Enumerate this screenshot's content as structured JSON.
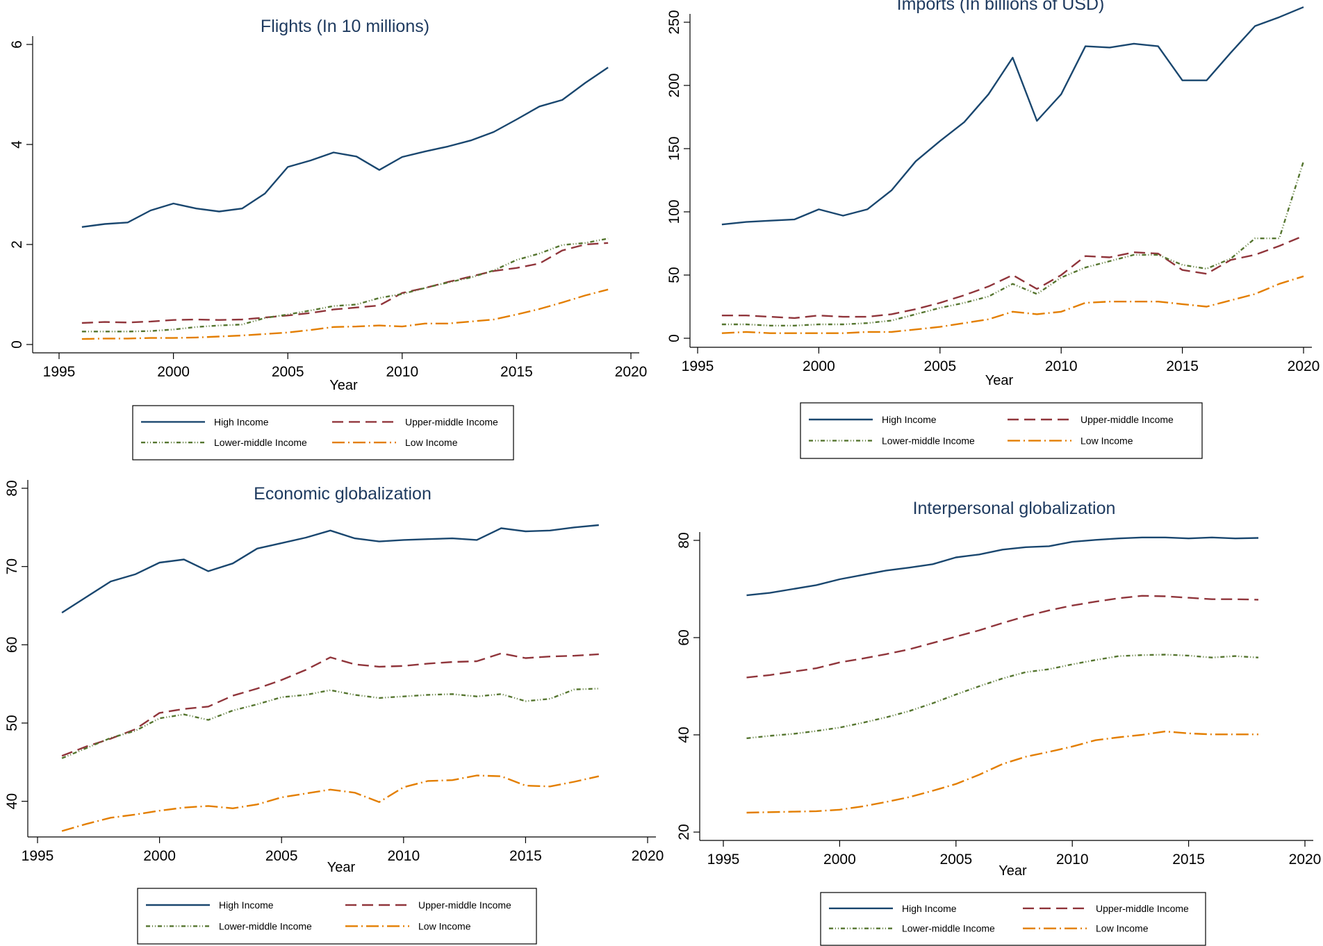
{
  "series_styles": [
    {
      "name": "High Income",
      "color": "#1a476f",
      "dash": "none"
    },
    {
      "name": "Upper-middle Income",
      "color": "#90353b",
      "dash": "16 8"
    },
    {
      "name": "Lower-middle Income",
      "color": "#55752f",
      "dash": "6 3 1 3 1 3"
    },
    {
      "name": "Low Income",
      "color": "#e37e00",
      "dash": "18 5 2 5"
    }
  ],
  "chart_data": [
    {
      "type": "line",
      "title": "Flights (In 10 millions)",
      "xlabel": "Year",
      "ylabel": "",
      "xlim": [
        1995,
        2020
      ],
      "ylim": [
        0,
        6
      ],
      "xticks": [
        1995,
        2000,
        2005,
        2010,
        2015,
        2020
      ],
      "yticks": [
        0,
        2,
        4,
        6
      ],
      "legend": "bottom",
      "x": [
        1996,
        1997,
        1998,
        1999,
        2000,
        2001,
        2002,
        2003,
        2004,
        2005,
        2006,
        2007,
        2008,
        2009,
        2010,
        2011,
        2012,
        2013,
        2014,
        2015,
        2016,
        2017,
        2018,
        2019
      ],
      "series": [
        {
          "name": "High Income",
          "values": [
            2.35,
            2.41,
            2.44,
            2.68,
            2.82,
            2.72,
            2.66,
            2.72,
            3.02,
            3.55,
            3.68,
            3.84,
            3.76,
            3.49,
            3.75,
            3.86,
            3.96,
            4.08,
            4.25,
            4.5,
            4.76,
            4.89,
            5.23,
            5.54
          ]
        },
        {
          "name": "Upper-middle Income",
          "values": [
            0.43,
            0.45,
            0.44,
            0.46,
            0.49,
            0.5,
            0.49,
            0.5,
            0.54,
            0.58,
            0.63,
            0.7,
            0.74,
            0.78,
            1.03,
            1.13,
            1.25,
            1.36,
            1.47,
            1.53,
            1.62,
            1.88,
            2.0,
            2.03
          ]
        },
        {
          "name": "Lower-middle Income",
          "values": [
            0.26,
            0.26,
            0.26,
            0.27,
            0.3,
            0.35,
            0.38,
            0.4,
            0.53,
            0.6,
            0.68,
            0.77,
            0.8,
            0.93,
            1.01,
            1.13,
            1.24,
            1.34,
            1.48,
            1.69,
            1.82,
            1.99,
            2.03,
            2.12
          ]
        },
        {
          "name": "Low Income",
          "values": [
            0.11,
            0.12,
            0.12,
            0.13,
            0.13,
            0.14,
            0.16,
            0.18,
            0.21,
            0.24,
            0.29,
            0.35,
            0.36,
            0.38,
            0.36,
            0.42,
            0.42,
            0.46,
            0.5,
            0.6,
            0.71,
            0.84,
            0.98,
            1.1
          ]
        }
      ]
    },
    {
      "type": "line",
      "title": "Imports (In billions of USD)",
      "xlabel": "Year",
      "ylabel": "",
      "xlim": [
        1995,
        2020
      ],
      "ylim": [
        0,
        250
      ],
      "xticks": [
        1995,
        2000,
        2005,
        2010,
        2015,
        2020
      ],
      "yticks": [
        0,
        50,
        100,
        150,
        200,
        250
      ],
      "legend": "bottom",
      "x": [
        1996,
        1997,
        1998,
        1999,
        2000,
        2001,
        2002,
        2003,
        2004,
        2005,
        2006,
        2007,
        2008,
        2009,
        2010,
        2011,
        2012,
        2013,
        2014,
        2015,
        2016,
        2017,
        2018,
        2019,
        2020
      ],
      "series": [
        {
          "name": "High Income",
          "values": [
            90,
            92,
            93,
            94,
            102,
            97,
            102,
            117,
            140,
            156,
            171,
            193,
            222,
            172,
            193,
            231,
            230,
            233,
            231,
            204,
            204,
            226,
            247,
            254,
            262
          ]
        },
        {
          "name": "Upper-middle Income",
          "values": [
            18,
            18,
            17,
            16,
            18,
            17,
            17,
            19,
            23,
            28,
            34,
            41,
            50,
            39,
            50,
            65,
            64,
            68,
            67,
            54,
            51,
            62,
            66,
            73,
            81
          ]
        },
        {
          "name": "Lower-middle Income",
          "values": [
            11,
            11,
            10,
            10,
            11,
            11,
            12,
            14,
            19,
            24,
            28,
            33,
            43,
            35,
            48,
            56,
            61,
            66,
            66,
            58,
            55,
            63,
            79,
            79,
            140
          ]
        },
        {
          "name": "Low Income",
          "values": [
            4,
            5,
            4,
            4,
            4,
            4,
            5,
            5,
            7,
            9,
            12,
            15,
            21,
            19,
            21,
            28,
            29,
            29,
            29,
            27,
            25,
            30,
            35,
            43,
            49
          ]
        }
      ]
    },
    {
      "type": "line",
      "title": "Economic globalization",
      "xlabel": "Year",
      "ylabel": "",
      "xlim": [
        1995,
        2020
      ],
      "ylim": [
        35,
        80
      ],
      "xticks": [
        1995,
        2000,
        2005,
        2010,
        2015,
        2020
      ],
      "yticks": [
        40,
        50,
        60,
        70,
        80
      ],
      "legend": "bottom",
      "x": [
        1996,
        1997,
        1998,
        1999,
        2000,
        2001,
        2002,
        2003,
        2004,
        2005,
        2006,
        2007,
        2008,
        2009,
        2010,
        2011,
        2012,
        2013,
        2014,
        2015,
        2016,
        2017,
        2018
      ],
      "series": [
        {
          "name": "High Income",
          "values": [
            64.1,
            66.1,
            68.1,
            69.0,
            70.5,
            70.9,
            69.4,
            70.4,
            72.3,
            73.0,
            73.7,
            74.6,
            73.6,
            73.2,
            73.4,
            73.5,
            73.6,
            73.4,
            74.9,
            74.5,
            74.6,
            75.0,
            75.3
          ]
        },
        {
          "name": "Upper-middle Income",
          "values": [
            45.8,
            47.0,
            48.0,
            49.2,
            51.3,
            51.8,
            52.1,
            53.5,
            54.4,
            55.5,
            56.8,
            58.4,
            57.5,
            57.2,
            57.3,
            57.6,
            57.8,
            57.9,
            58.9,
            58.3,
            58.5,
            58.6,
            58.8
          ]
        },
        {
          "name": "Lower-middle Income",
          "values": [
            45.5,
            46.8,
            48.1,
            49.0,
            50.6,
            51.1,
            50.4,
            51.6,
            52.4,
            53.3,
            53.6,
            54.2,
            53.6,
            53.2,
            53.4,
            53.6,
            53.7,
            53.4,
            53.7,
            52.8,
            53.1,
            54.3,
            54.4
          ]
        },
        {
          "name": "Low Income",
          "values": [
            36.2,
            37.1,
            37.9,
            38.3,
            38.8,
            39.2,
            39.4,
            39.1,
            39.6,
            40.5,
            41.0,
            41.5,
            41.1,
            39.9,
            41.8,
            42.6,
            42.7,
            43.3,
            43.2,
            42.0,
            41.9,
            42.5,
            43.2
          ]
        }
      ]
    },
    {
      "type": "line",
      "title": "Interpersonal globalization",
      "xlabel": "Year",
      "ylabel": "",
      "xlim": [
        1995,
        2020
      ],
      "ylim": [
        20,
        80
      ],
      "xticks": [
        1995,
        2000,
        2005,
        2010,
        2015,
        2020
      ],
      "yticks": [
        20,
        40,
        60,
        80
      ],
      "legend": "bottom",
      "x": [
        1996,
        1997,
        1998,
        1999,
        2000,
        2001,
        2002,
        2003,
        2004,
        2005,
        2006,
        2007,
        2008,
        2009,
        2010,
        2011,
        2012,
        2013,
        2014,
        2015,
        2016,
        2017,
        2018
      ],
      "series": [
        {
          "name": "High Income",
          "values": [
            68.7,
            69.2,
            70.0,
            70.8,
            72.0,
            72.9,
            73.8,
            74.4,
            75.1,
            76.5,
            77.1,
            78.1,
            78.6,
            78.8,
            79.7,
            80.1,
            80.4,
            80.6,
            80.6,
            80.4,
            80.6,
            80.4,
            80.5
          ]
        },
        {
          "name": "Upper-middle Income",
          "values": [
            51.8,
            52.3,
            53.0,
            53.7,
            54.9,
            55.7,
            56.6,
            57.6,
            58.9,
            60.2,
            61.5,
            63.0,
            64.4,
            65.6,
            66.6,
            67.4,
            68.1,
            68.6,
            68.5,
            68.2,
            67.9,
            67.9,
            67.8
          ]
        },
        {
          "name": "Lower-middle Income",
          "values": [
            39.3,
            39.8,
            40.2,
            40.8,
            41.5,
            42.5,
            43.6,
            44.9,
            46.5,
            48.3,
            50.0,
            51.6,
            52.9,
            53.5,
            54.5,
            55.4,
            56.2,
            56.4,
            56.5,
            56.3,
            55.9,
            56.2,
            55.9
          ]
        },
        {
          "name": "Low Income",
          "values": [
            24.0,
            24.1,
            24.2,
            24.3,
            24.6,
            25.3,
            26.2,
            27.2,
            28.5,
            29.9,
            31.8,
            34.0,
            35.5,
            36.5,
            37.6,
            38.9,
            39.5,
            40.0,
            40.7,
            40.3,
            40.1,
            40.1,
            40.1
          ]
        }
      ]
    }
  ]
}
